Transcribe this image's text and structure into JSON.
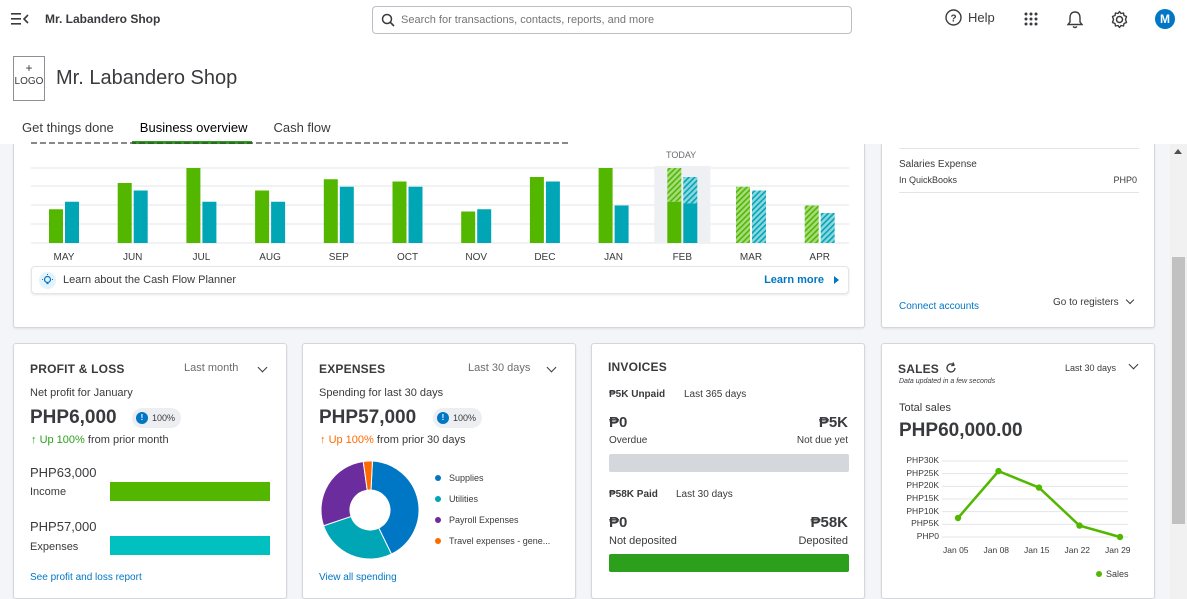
{
  "topbar": {
    "company": "Mr. Labandero Shop",
    "search_placeholder": "Search for transactions, contacts, reports, and more",
    "help_label": "Help",
    "avatar_initial": "M"
  },
  "header": {
    "logo_plus": "+",
    "logo_label": "LOGO",
    "company_title": "Mr. Labandero Shop",
    "tabs": [
      "Get things done",
      "Business overview",
      "Cash flow"
    ],
    "active_tab": "Business overview"
  },
  "cashflow": {
    "today_label": "TODAY",
    "months": [
      "MAY",
      "JUN",
      "JUL",
      "AUG",
      "SEP",
      "OCT",
      "NOV",
      "DEC",
      "JAN",
      "FEB",
      "MAR",
      "APR"
    ],
    "money_in": [
      45,
      80,
      100,
      70,
      85,
      82,
      42,
      88,
      100,
      100,
      75,
      50
    ],
    "money_out": [
      55,
      70,
      55,
      55,
      75,
      75,
      45,
      82,
      50,
      88,
      70,
      40
    ],
    "forecast_from_index": 9,
    "colors": {
      "in": "#53b700",
      "out": "#00a6b6"
    },
    "learn_text": "Learn about the Cash Flow Planner",
    "learn_link": "Learn more"
  },
  "bank_accounts": {
    "account_name": "Salaries Expense",
    "account_sub": "In QuickBooks",
    "account_value": "PHP0",
    "connect_link": "Connect accounts",
    "registers_label": "Go to registers"
  },
  "profit_loss": {
    "title": "PROFIT & LOSS",
    "period": "Last month",
    "subtitle": "Net profit for January",
    "amount": "PHP6,000",
    "badge": "100%",
    "change_prefix": "Up 100%",
    "change_suffix": "from prior month",
    "income_amount": "PHP63,000",
    "income_label": "Income",
    "expenses_amount": "PHP57,000",
    "expenses_label": "Expenses",
    "link": "See profit and loss report",
    "income_fraction": 1.0,
    "expenses_fraction": 1.0
  },
  "expenses": {
    "title": "EXPENSES",
    "period": "Last 30 days",
    "subtitle": "Spending for last 30 days",
    "amount": "PHP57,000",
    "badge": "100%",
    "change_prefix": "Up 100%",
    "change_suffix": "from prior 30 days",
    "link": "View all spending",
    "categories": [
      {
        "name": "Supplies",
        "color": "#0077c5",
        "share": 0.42
      },
      {
        "name": "Utilities",
        "color": "#00a6b6",
        "share": 0.27
      },
      {
        "name": "Payroll Expenses",
        "color": "#6b2c9e",
        "share": 0.28
      },
      {
        "name": "Travel expenses - gene...",
        "color": "#ff6a00",
        "share": 0.03
      }
    ]
  },
  "invoices": {
    "title": "INVOICES",
    "unpaid_label": "₱5K Unpaid",
    "unpaid_period": "Last 365 days",
    "overdue_amount": "₱0",
    "overdue_label": "Overdue",
    "not_due_amount": "₱5K",
    "not_due_label": "Not due yet",
    "paid_label": "₱58K Paid",
    "paid_period": "Last 30 days",
    "not_deposited_amount": "₱0",
    "not_deposited_label": "Not deposited",
    "deposited_amount": "₱58K",
    "deposited_label": "Deposited"
  },
  "sales": {
    "title": "SALES",
    "period": "Last 30 days",
    "updated": "Data updated in a few seconds",
    "total_label": "Total sales",
    "total_amount": "PHP60,000.00",
    "legend": "Sales",
    "y_ticks": [
      "PHP30K",
      "PHP25K",
      "PHP20K",
      "PHP15K",
      "PHP10K",
      "PHP5K",
      "PHP0"
    ]
  },
  "chart_data": {
    "type": "line",
    "x": [
      "Jan 05",
      "Jan 08",
      "Jan 15",
      "Jan 22",
      "Jan 29"
    ],
    "series": [
      {
        "name": "Sales",
        "values": [
          7500,
          26000,
          19500,
          4500,
          0
        ]
      }
    ],
    "ylim": [
      0,
      30000
    ],
    "color": "#53b700"
  }
}
